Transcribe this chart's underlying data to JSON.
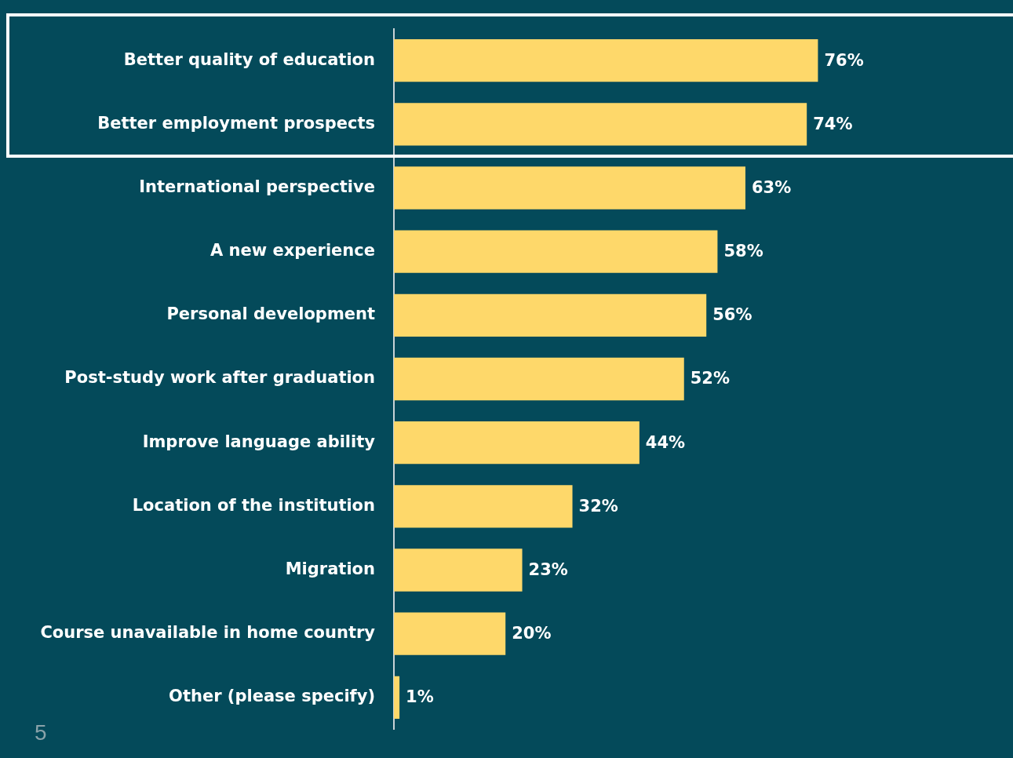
{
  "chart_data": {
    "type": "bar",
    "orientation": "horizontal",
    "categories": [
      "Better quality of education",
      "Better employment prospects",
      "International perspective",
      "A new experience",
      "Personal development",
      "Post-study work after graduation",
      "Improve language ability",
      "Location of the institution",
      "Migration",
      "Course unavailable in home country",
      "Other (please specify)"
    ],
    "values": [
      76,
      74,
      63,
      58,
      56,
      52,
      44,
      32,
      23,
      20,
      1
    ],
    "value_labels": [
      "76%",
      "74%",
      "63%",
      "58%",
      "56%",
      "52%",
      "44%",
      "32%",
      "23%",
      "20%",
      "1%"
    ],
    "color": "#fed86a",
    "grid": false,
    "legend": false,
    "annotations": [
      "5"
    ]
  }
}
